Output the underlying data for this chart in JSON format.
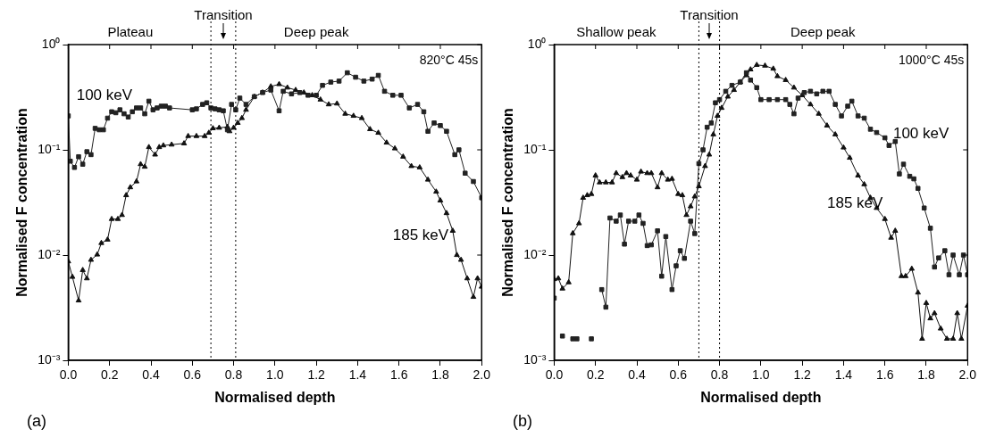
{
  "chart_data": [
    {
      "type": "line",
      "xlabel": "Normalised depth",
      "ylabel": "Normalised F concentration",
      "log": "y",
      "grid": false,
      "legend": false,
      "xlim": [
        0,
        2
      ],
      "xticks": [
        {
          "value": 0,
          "label": "0.0"
        },
        {
          "value": 0.2,
          "label": "0.2"
        },
        {
          "value": 0.4,
          "label": "0.4"
        },
        {
          "value": 0.6,
          "label": "0.6"
        },
        {
          "value": 0.8,
          "label": "0.8"
        },
        {
          "value": 1,
          "label": "1.0"
        },
        {
          "value": 1.2,
          "label": "1.2"
        },
        {
          "value": 1.4,
          "label": "1.4"
        },
        {
          "value": 1.6,
          "label": "1.6"
        },
        {
          "value": 1.8,
          "label": "1.8"
        },
        {
          "value": 2,
          "label": "2.0"
        }
      ],
      "ylim": [
        0.001,
        1
      ],
      "yticks": [
        {
          "value": 0.001,
          "label": "10⁻³"
        },
        {
          "value": 0.01,
          "label": "10⁻²"
        },
        {
          "value": 0.1,
          "label": "10⁻¹"
        },
        {
          "value": 1,
          "label": "10⁰"
        }
      ],
      "ref_lines": [
        {
          "axis": "x",
          "value": 0.69,
          "line_style": "dotted"
        },
        {
          "axis": "x",
          "value": 0.81,
          "line_style": "dotted"
        }
      ],
      "annotations": [
        "Plateau",
        "Transition",
        "Deep peak",
        "820°C 45s",
        "(a)"
      ],
      "series": [
        {
          "name": "100 keV",
          "color": "#222222",
          "marker": "square",
          "x": [
            0,
            0.01,
            0.03,
            0.05,
            0.07,
            0.09,
            0.11,
            0.13,
            0.15,
            0.17,
            0.19,
            0.21,
            0.23,
            0.25,
            0.27,
            0.29,
            0.31,
            0.33,
            0.35,
            0.37,
            0.39,
            0.41,
            0.43,
            0.45,
            0.47,
            0.49,
            0.6,
            0.62,
            0.65,
            0.67,
            0.69,
            0.71,
            0.73,
            0.75,
            0.77,
            0.79,
            0.81,
            0.83,
            0.86,
            0.9,
            0.94,
            0.98,
            1.02,
            1.04,
            1.08,
            1.12,
            1.16,
            1.2,
            1.23,
            1.27,
            1.31,
            1.35,
            1.39,
            1.43,
            1.47,
            1.5,
            1.53,
            1.57,
            1.61,
            1.65,
            1.69,
            1.72,
            1.74,
            1.77,
            1.8,
            1.83,
            1.87,
            1.89,
            1.92,
            1.96,
            2.0
          ],
          "values": [
            0.21,
            0.078,
            0.068,
            0.086,
            0.073,
            0.096,
            0.09,
            0.16,
            0.155,
            0.155,
            0.2,
            0.23,
            0.225,
            0.24,
            0.22,
            0.205,
            0.23,
            0.25,
            0.25,
            0.22,
            0.29,
            0.24,
            0.25,
            0.26,
            0.26,
            0.25,
            0.24,
            0.245,
            0.27,
            0.28,
            0.25,
            0.245,
            0.24,
            0.235,
            0.155,
            0.27,
            0.24,
            0.31,
            0.27,
            0.32,
            0.35,
            0.37,
            0.235,
            0.36,
            0.34,
            0.35,
            0.33,
            0.33,
            0.41,
            0.44,
            0.45,
            0.54,
            0.49,
            0.45,
            0.47,
            0.51,
            0.36,
            0.33,
            0.33,
            0.25,
            0.27,
            0.23,
            0.15,
            0.18,
            0.17,
            0.15,
            0.09,
            0.1,
            0.06,
            0.05,
            0.035
          ]
        },
        {
          "name": "185 keV",
          "color": "#111111",
          "marker": "triangle",
          "x": [
            0,
            0.02,
            0.05,
            0.07,
            0.09,
            0.11,
            0.14,
            0.16,
            0.19,
            0.21,
            0.24,
            0.26,
            0.28,
            0.3,
            0.33,
            0.35,
            0.37,
            0.39,
            0.42,
            0.44,
            0.46,
            0.5,
            0.56,
            0.58,
            0.62,
            0.66,
            0.68,
            0.7,
            0.73,
            0.77,
            0.78,
            0.8,
            0.82,
            0.84,
            0.86,
            0.9,
            0.94,
            0.98,
            1.02,
            1.06,
            1.1,
            1.14,
            1.18,
            1.22,
            1.26,
            1.3,
            1.34,
            1.38,
            1.42,
            1.46,
            1.5,
            1.54,
            1.58,
            1.62,
            1.66,
            1.7,
            1.74,
            1.78,
            1.8,
            1.83,
            1.86,
            1.88,
            1.9,
            1.93,
            1.96,
            1.98,
            2.0
          ],
          "values": [
            0.0087,
            0.0062,
            0.0037,
            0.0072,
            0.006,
            0.009,
            0.0101,
            0.013,
            0.014,
            0.022,
            0.022,
            0.024,
            0.037,
            0.044,
            0.05,
            0.073,
            0.069,
            0.106,
            0.09,
            0.106,
            0.11,
            0.112,
            0.115,
            0.135,
            0.135,
            0.135,
            0.145,
            0.16,
            0.162,
            0.165,
            0.15,
            0.162,
            0.18,
            0.2,
            0.24,
            0.32,
            0.35,
            0.4,
            0.42,
            0.39,
            0.37,
            0.35,
            0.33,
            0.3,
            0.27,
            0.275,
            0.22,
            0.21,
            0.2,
            0.157,
            0.145,
            0.117,
            0.103,
            0.086,
            0.07,
            0.068,
            0.052,
            0.04,
            0.033,
            0.025,
            0.017,
            0.01,
            0.009,
            0.006,
            0.004,
            0.006,
            0.005
          ]
        }
      ]
    },
    {
      "type": "line",
      "xlabel": "Normalised depth",
      "ylabel": "Normalised F concentration",
      "log": "y",
      "grid": false,
      "legend": false,
      "xlim": [
        0,
        2
      ],
      "xticks": [
        {
          "value": 0,
          "label": "0.0"
        },
        {
          "value": 0.2,
          "label": "0.2"
        },
        {
          "value": 0.4,
          "label": "0.4"
        },
        {
          "value": 0.6,
          "label": "0.6"
        },
        {
          "value": 0.8,
          "label": "0.8"
        },
        {
          "value": 1,
          "label": "1.0"
        },
        {
          "value": 1.2,
          "label": "1.2"
        },
        {
          "value": 1.4,
          "label": "1.4"
        },
        {
          "value": 1.6,
          "label": "1.6"
        },
        {
          "value": 1.8,
          "label": "1.8"
        },
        {
          "value": 2,
          "label": "2.0"
        }
      ],
      "ylim": [
        0.001,
        1
      ],
      "yticks": [
        {
          "value": 0.001,
          "label": "10⁻³"
        },
        {
          "value": 0.01,
          "label": "10⁻²"
        },
        {
          "value": 0.1,
          "label": "10⁻¹"
        },
        {
          "value": 1,
          "label": "10⁰"
        }
      ],
      "ref_lines": [
        {
          "axis": "x",
          "value": 0.7,
          "line_style": "dotted"
        },
        {
          "axis": "x",
          "value": 0.8,
          "line_style": "dotted"
        }
      ],
      "annotations": [
        "Shallow peak",
        "Transition",
        "Deep peak",
        "1000°C 45s",
        "(b)"
      ],
      "series": [
        {
          "name": "100 keV",
          "color": "#222222",
          "marker": "square",
          "x": [
            0,
            0.02,
            0.04,
            0.06,
            0.09,
            0.1,
            0.11,
            0.13,
            0.18,
            0.2,
            0.23,
            0.25,
            0.27,
            0.3,
            0.32,
            0.34,
            0.36,
            0.39,
            0.41,
            0.43,
            0.45,
            0.47,
            0.5,
            0.52,
            0.54,
            0.57,
            0.59,
            0.61,
            0.63,
            0.66,
            0.68,
            0.7,
            0.72,
            0.74,
            0.76,
            0.78,
            0.8,
            0.83,
            0.86,
            0.9,
            0.93,
            0.95,
            0.98,
            1.0,
            1.04,
            1.08,
            1.12,
            1.14,
            1.16,
            1.18,
            1.21,
            1.24,
            1.27,
            1.3,
            1.33,
            1.36,
            1.39,
            1.42,
            1.44,
            1.47,
            1.5,
            1.53,
            1.56,
            1.6,
            1.62,
            1.65,
            1.67,
            1.69,
            1.72,
            1.74,
            1.76,
            1.79,
            1.82,
            1.84,
            1.86,
            1.89,
            1.91,
            1.93,
            1.96,
            1.98,
            2.0
          ],
          "values": [
            0.0039,
            null,
            0.0017,
            null,
            0.0016,
            null,
            0.0016,
            null,
            0.0016,
            null,
            0.0047,
            0.0032,
            0.0225,
            0.021,
            0.024,
            0.0127,
            0.021,
            0.021,
            0.024,
            0.02,
            0.0123,
            0.0125,
            0.017,
            0.0063,
            0.015,
            0.0047,
            0.0079,
            0.011,
            0.0093,
            0.021,
            0.016,
            0.074,
            0.1,
            0.164,
            0.18,
            0.28,
            0.3,
            0.36,
            0.41,
            0.44,
            0.54,
            0.46,
            0.39,
            0.3,
            0.3,
            0.3,
            0.3,
            0.27,
            0.22,
            0.31,
            0.35,
            0.36,
            0.34,
            0.36,
            0.36,
            0.27,
            0.21,
            0.26,
            0.29,
            0.21,
            0.2,
            0.157,
            0.146,
            0.13,
            0.11,
            0.12,
            0.059,
            0.073,
            0.056,
            0.053,
            0.043,
            0.028,
            0.018,
            0.0077,
            0.0094,
            0.011,
            0.0065,
            0.01,
            0.0065,
            0.01,
            0.0065
          ]
        },
        {
          "name": "185 keV",
          "color": "#111111",
          "marker": "triangle",
          "x": [
            0,
            0.02,
            0.04,
            0.07,
            0.09,
            0.12,
            0.14,
            0.16,
            0.18,
            0.2,
            0.22,
            0.25,
            0.28,
            0.3,
            0.33,
            0.35,
            0.37,
            0.4,
            0.42,
            0.45,
            0.47,
            0.5,
            0.52,
            0.55,
            0.57,
            0.6,
            0.62,
            0.64,
            0.66,
            0.68,
            0.7,
            0.73,
            0.75,
            0.77,
            0.79,
            0.81,
            0.84,
            0.87,
            0.9,
            0.93,
            0.95,
            0.98,
            1.02,
            1.06,
            1.08,
            1.12,
            1.16,
            1.2,
            1.24,
            1.28,
            1.32,
            1.36,
            1.4,
            1.43,
            1.47,
            1.5,
            1.53,
            1.56,
            1.6,
            1.63,
            1.65,
            1.68,
            1.7,
            1.73,
            1.76,
            1.78,
            1.8,
            1.82,
            1.84,
            1.87,
            1.9,
            1.93,
            1.95,
            1.97,
            2.0
          ],
          "values": [
            0.0059,
            0.006,
            0.0048,
            0.0055,
            0.0161,
            0.02,
            0.035,
            0.037,
            0.038,
            0.057,
            0.049,
            0.049,
            0.049,
            0.06,
            0.055,
            0.06,
            0.057,
            0.052,
            0.062,
            0.06,
            0.06,
            0.044,
            0.06,
            0.052,
            0.053,
            0.038,
            0.037,
            0.024,
            0.029,
            0.036,
            0.045,
            0.07,
            0.09,
            0.14,
            0.21,
            0.25,
            0.32,
            0.37,
            0.44,
            0.51,
            0.58,
            0.64,
            0.63,
            0.59,
            0.5,
            0.46,
            0.39,
            0.33,
            0.27,
            0.22,
            0.17,
            0.14,
            0.105,
            0.084,
            0.057,
            0.047,
            0.035,
            0.028,
            0.022,
            0.0146,
            0.017,
            0.0063,
            0.0063,
            0.0074,
            0.0044,
            0.0016,
            0.0035,
            0.0025,
            0.0028,
            0.002,
            0.0016,
            0.0016,
            0.0028,
            0.0016,
            0.0033
          ]
        }
      ]
    }
  ]
}
